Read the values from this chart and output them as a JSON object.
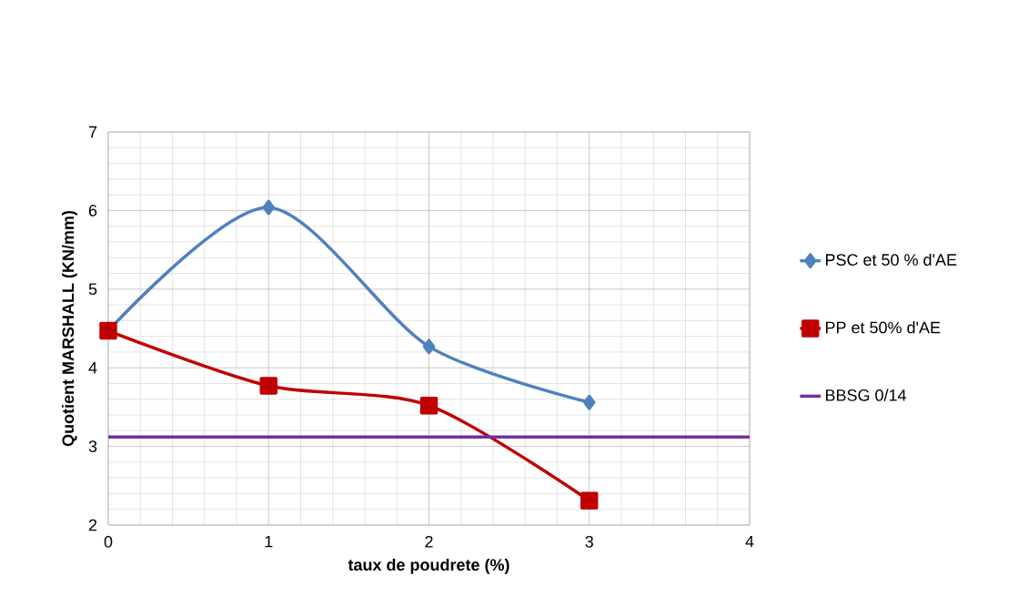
{
  "chart_data": {
    "type": "line",
    "xlabel": "taux de poudrete (%)",
    "ylabel": "Quotient MARSHALL (KN/mm)",
    "xlim": [
      0,
      4
    ],
    "ylim": [
      2,
      7
    ],
    "xticks": [
      0,
      1,
      2,
      3,
      4
    ],
    "yticks": [
      2,
      3,
      4,
      5,
      6,
      7
    ],
    "grid": true,
    "legend": "right",
    "series": [
      {
        "name": "PSC et 50 % d'AE",
        "color": "#4f81bd",
        "marker": "diamond",
        "x": [
          0,
          1,
          2,
          3
        ],
        "values": [
          4.47,
          6.04,
          4.27,
          3.56
        ]
      },
      {
        "name": "PP et 50%  d'AE",
        "color": "#c00000",
        "marker": "square",
        "x": [
          0,
          1,
          2,
          3
        ],
        "values": [
          4.47,
          3.77,
          3.52,
          2.31
        ]
      },
      {
        "name": "BBSG 0/14",
        "color": "#7030a0",
        "marker": "none",
        "x": [
          0,
          4
        ],
        "values": [
          3.12,
          3.12
        ]
      }
    ]
  }
}
